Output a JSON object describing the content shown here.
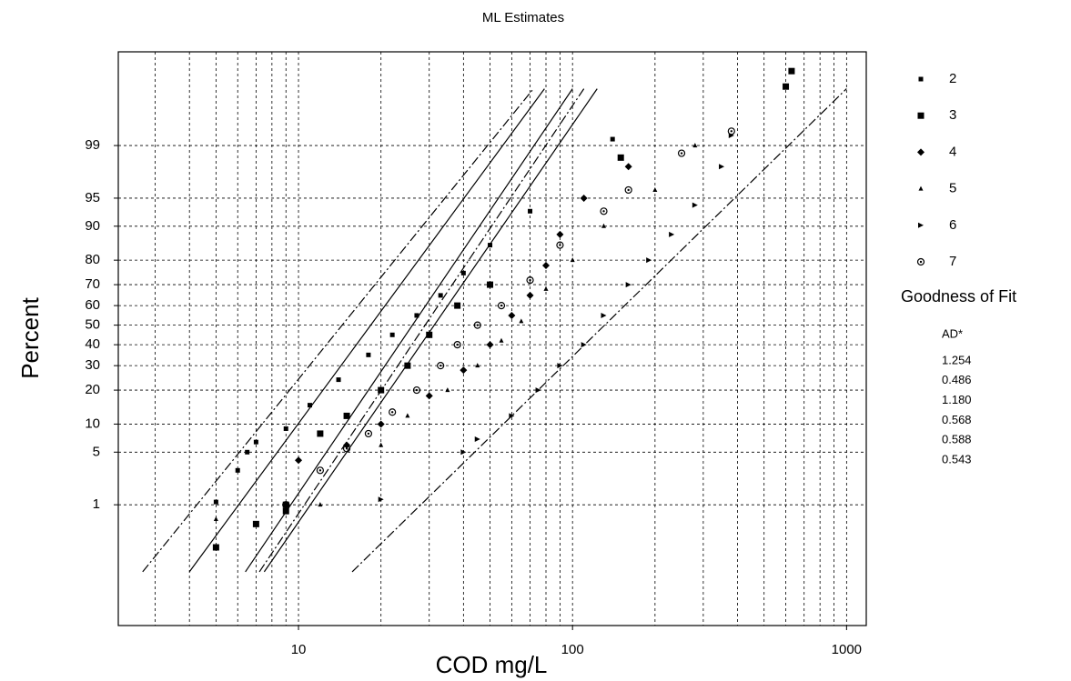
{
  "chart_data": {
    "type": "probability",
    "title": "ML Estimates",
    "x_label": "COD mg/L",
    "y_label": "Percent",
    "x_log": true,
    "xlim": [
      2.2,
      1180
    ],
    "xticks": [
      10,
      100,
      1000
    ],
    "x_minor_ticks": [
      3,
      4,
      5,
      6,
      7,
      8,
      9,
      20,
      30,
      40,
      50,
      60,
      70,
      80,
      90,
      200,
      300,
      400,
      500,
      600,
      700,
      800,
      900
    ],
    "y_scale": "normal-probability",
    "ylim": [
      0.005,
      99.98
    ],
    "yticks": [
      1,
      5,
      10,
      20,
      30,
      40,
      50,
      60,
      70,
      80,
      90,
      95,
      99
    ],
    "grid": true,
    "legend_position": "right",
    "series": [
      {
        "name": "2",
        "color": "#000000",
        "marker": "square-small",
        "x": [
          5,
          6,
          6.5,
          7,
          9,
          11,
          14,
          18,
          22,
          27,
          33,
          40,
          50,
          70,
          140
        ],
        "values": [
          1.1,
          3,
          5,
          6.5,
          9,
          15,
          24,
          35,
          45,
          55,
          65,
          75,
          85,
          93,
          99.2
        ],
        "fit": {
          "style": "dashdot",
          "x": [
            2.7,
            72
          ],
          "values": [
            0.07,
            99.89
          ]
        }
      },
      {
        "name": "3",
        "color": "#000000",
        "marker": "square",
        "x": [
          5,
          7,
          9,
          9,
          12,
          15,
          20,
          25,
          30,
          38,
          50,
          150,
          600,
          630
        ],
        "values": [
          0.2,
          0.5,
          0.8,
          1,
          8,
          12,
          20,
          30,
          45,
          60,
          70,
          98.5,
          99.9,
          99.95
        ],
        "fit": {
          "style": "solid",
          "x": [
            4,
            79
          ],
          "values": [
            0.07,
            99.89
          ]
        }
      },
      {
        "name": "4",
        "color": "#000000",
        "marker": "diamond",
        "x": [
          10,
          15,
          20,
          30,
          40,
          50,
          60,
          70,
          80,
          90,
          110,
          160
        ],
        "values": [
          4,
          6,
          10,
          18,
          28,
          40,
          55,
          65,
          78,
          88,
          95,
          98
        ],
        "fit": {
          "style": "solid",
          "x": [
            6.4,
            100
          ],
          "values": [
            0.07,
            99.89
          ]
        }
      },
      {
        "name": "5",
        "color": "#000000",
        "marker": "triangle",
        "x": [
          5,
          12,
          20,
          25,
          35,
          45,
          55,
          65,
          80,
          100,
          130,
          200,
          280
        ],
        "values": [
          0.6,
          1,
          6,
          12,
          20,
          30,
          42,
          52,
          68,
          80,
          90,
          96,
          99
        ],
        "fit": {
          "style": "solid",
          "x": [
            7.5,
            123
          ],
          "values": [
            0.07,
            99.89
          ]
        }
      },
      {
        "name": "6",
        "color": "#000000",
        "marker": "arrow",
        "x": [
          20,
          40,
          45,
          60,
          75,
          90,
          110,
          130,
          160,
          190,
          230,
          280,
          350,
          380
        ],
        "values": [
          1.2,
          5,
          7,
          12,
          20,
          30,
          40,
          55,
          70,
          80,
          88,
          94,
          98,
          99.3
        ],
        "fit": {
          "style": "dashdot",
          "x": [
            15.7,
            1000
          ],
          "values": [
            0.07,
            99.89
          ]
        }
      },
      {
        "name": "7",
        "color": "#000000",
        "marker": "circle-dot",
        "x": [
          9,
          12,
          15,
          18,
          22,
          27,
          33,
          38,
          45,
          55,
          70,
          90,
          130,
          160,
          250,
          380
        ],
        "values": [
          1,
          3,
          5.5,
          8,
          13,
          20,
          30,
          40,
          50,
          60,
          72,
          85,
          93,
          96,
          98.7,
          99.4
        ],
        "fit": {
          "style": "dashdot",
          "x": [
            7.2,
            110
          ],
          "values": [
            0.07,
            99.89
          ]
        }
      }
    ],
    "goodness_of_fit": {
      "title": "Goodness of Fit",
      "header": "AD*",
      "values": [
        "1.254",
        "0.486",
        "1.180",
        "0.568",
        "0.588",
        "0.543"
      ]
    }
  }
}
